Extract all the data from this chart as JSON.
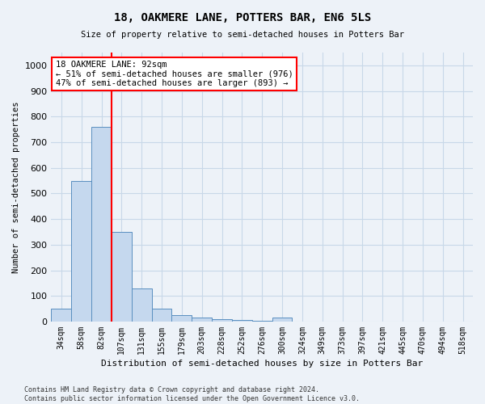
{
  "title1": "18, OAKMERE LANE, POTTERS BAR, EN6 5LS",
  "title2": "Size of property relative to semi-detached houses in Potters Bar",
  "xlabel": "Distribution of semi-detached houses by size in Potters Bar",
  "ylabel": "Number of semi-detached properties",
  "categories": [
    "34sqm",
    "58sqm",
    "82sqm",
    "107sqm",
    "131sqm",
    "155sqm",
    "179sqm",
    "203sqm",
    "228sqm",
    "252sqm",
    "276sqm",
    "300sqm",
    "324sqm",
    "349sqm",
    "373sqm",
    "397sqm",
    "421sqm",
    "445sqm",
    "470sqm",
    "494sqm",
    "518sqm"
  ],
  "values": [
    50,
    550,
    760,
    350,
    130,
    50,
    25,
    15,
    10,
    5,
    3,
    15,
    0,
    0,
    0,
    0,
    0,
    0,
    0,
    0,
    0
  ],
  "bar_color": "#c5d8ee",
  "bar_edge_color": "#5a8fc0",
  "grid_color": "#c8d8e8",
  "vline_color": "red",
  "annotation_text": "18 OAKMERE LANE: 92sqm\n← 51% of semi-detached houses are smaller (976)\n47% of semi-detached houses are larger (893) →",
  "annotation_box_color": "white",
  "annotation_box_edge": "red",
  "ylim": [
    0,
    1050
  ],
  "yticks": [
    0,
    100,
    200,
    300,
    400,
    500,
    600,
    700,
    800,
    900,
    1000
  ],
  "footer": "Contains HM Land Registry data © Crown copyright and database right 2024.\nContains public sector information licensed under the Open Government Licence v3.0.",
  "background_color": "#edf2f8"
}
